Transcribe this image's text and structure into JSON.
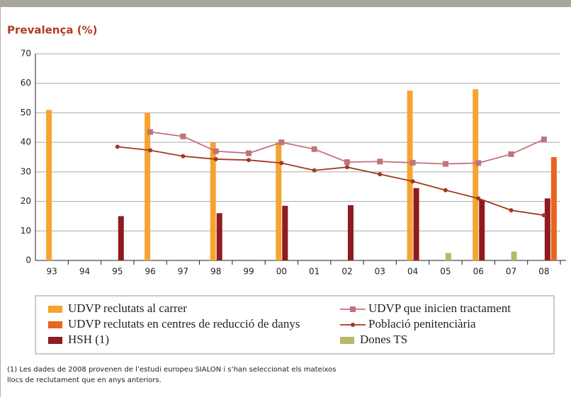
{
  "chart_data": {
    "type": "bar_line",
    "title": "Prevalença (%)",
    "categories": [
      "93",
      "94",
      "95",
      "96",
      "97",
      "98",
      "99",
      "00",
      "01",
      "02",
      "03",
      "04",
      "05",
      "06",
      "07",
      "08"
    ],
    "ylim": [
      0,
      70
    ],
    "yticks": [
      0,
      10,
      20,
      30,
      40,
      50,
      60,
      70
    ],
    "grid": true,
    "series": [
      {
        "name": "UDVP reclutats al carrer",
        "kind": "bar",
        "color": "#f5a432",
        "values": [
          51,
          null,
          null,
          50,
          null,
          40,
          null,
          40,
          null,
          null,
          null,
          57.5,
          null,
          58,
          null,
          null
        ]
      },
      {
        "name": "UDVP reclutats en centres de reducció de danys",
        "kind": "bar",
        "color": "#e8661c",
        "values": [
          null,
          null,
          null,
          null,
          null,
          null,
          null,
          null,
          null,
          null,
          null,
          null,
          null,
          null,
          null,
          35
        ]
      },
      {
        "name": "HSH (1)",
        "kind": "bar",
        "color": "#8e1b1f",
        "values": [
          null,
          null,
          15,
          null,
          null,
          16,
          null,
          18.5,
          null,
          18.7,
          null,
          24.5,
          null,
          20.5,
          null,
          21
        ]
      },
      {
        "name": "UDVP que inicien tractament",
        "kind": "line",
        "marker": "square",
        "color": "#c0737a",
        "values": [
          null,
          null,
          null,
          43.5,
          42,
          37,
          36.3,
          40,
          37.7,
          33.3,
          33.5,
          33.1,
          32.7,
          33,
          36,
          41
        ]
      },
      {
        "name": "Població penitenciària",
        "kind": "line",
        "marker": "circle",
        "color": "#a0391e",
        "values": [
          null,
          null,
          38.5,
          37.3,
          35.3,
          34.3,
          34,
          33,
          30.5,
          31.6,
          29.2,
          26.8,
          23.8,
          21,
          17,
          15.3
        ]
      },
      {
        "name": "Dones TS",
        "kind": "bar",
        "color": "#b8b76c",
        "values": [
          null,
          null,
          null,
          null,
          null,
          null,
          null,
          null,
          null,
          null,
          null,
          null,
          2.5,
          null,
          3,
          null
        ]
      }
    ],
    "footnote": [
      "(1) Les dades de 2008 provenen de l’estudi europeu SIALON i s’han seleccionat els mateixos",
      "llocs de reclutament que en anys anteriors."
    ]
  }
}
